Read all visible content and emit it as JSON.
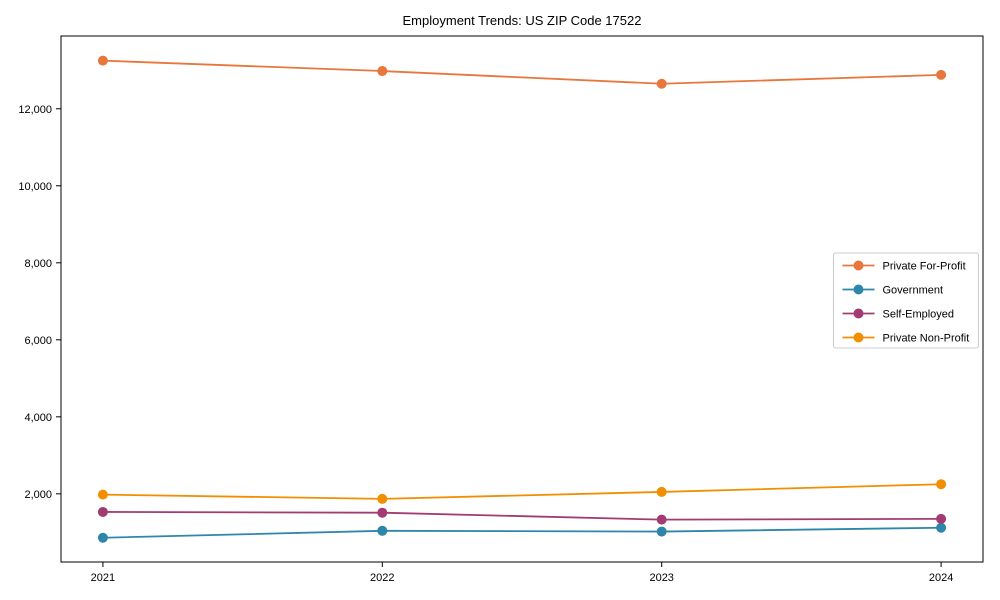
{
  "figure": {
    "background": "#ffffff",
    "text_color": "#000000",
    "spine_color": "#000000",
    "legend_border_color": "#cccccc"
  },
  "chart_data": {
    "type": "line",
    "title": "Employment Trends: US ZIP Code 17522",
    "xlabel": "",
    "ylabel": "",
    "x": [
      2021,
      2022,
      2023,
      2024
    ],
    "x_tick_labels": [
      "2021",
      "2022",
      "2023",
      "2024"
    ],
    "yticks": [
      2000,
      4000,
      6000,
      8000,
      10000,
      12000
    ],
    "ytick_labels": [
      "2,000",
      "4,000",
      "6,000",
      "8,000",
      "10,000",
      "12,000"
    ],
    "xlim": [
      2020.85,
      2024.15
    ],
    "ylim": [
      230,
      13890
    ],
    "grid": false,
    "marker": "circle",
    "legend_position": "center-right",
    "series": [
      {
        "name": "Private For-Profit",
        "color": "#E8773D",
        "values": [
          13250,
          12980,
          12650,
          12880
        ]
      },
      {
        "name": "Government",
        "color": "#2E86AB",
        "values": [
          860,
          1040,
          1020,
          1120
        ]
      },
      {
        "name": "Self-Employed",
        "color": "#A23B72",
        "values": [
          1530,
          1510,
          1330,
          1350
        ]
      },
      {
        "name": "Private Non-Profit",
        "color": "#F18F01",
        "values": [
          1980,
          1870,
          2050,
          2250
        ]
      }
    ]
  }
}
